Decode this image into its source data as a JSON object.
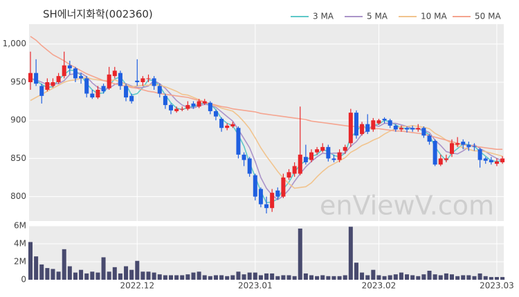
{
  "chart_data": {
    "type": "candlestick",
    "title": "SH에너지화학(002360)",
    "watermark": "enViewV.com",
    "up_color": "#e8262a",
    "down_color": "#1f5fe0",
    "volume_color": "#484a6e",
    "grid": true,
    "categories": [
      null,
      null,
      null,
      null,
      null,
      null,
      null,
      null,
      null,
      null,
      null,
      null,
      null,
      null,
      null,
      null,
      null,
      null,
      null,
      "2022.12",
      null,
      null,
      null,
      null,
      null,
      null,
      null,
      null,
      null,
      null,
      null,
      null,
      null,
      null,
      null,
      null,
      null,
      null,
      null,
      null,
      "2023.01",
      null,
      null,
      null,
      null,
      null,
      null,
      null,
      null,
      null,
      null,
      null,
      null,
      null,
      null,
      null,
      null,
      null,
      null,
      null,
      null,
      null,
      "2023.02",
      null,
      null,
      null,
      null,
      null,
      null,
      null,
      null,
      null,
      null,
      null,
      null,
      null,
      null,
      null,
      null,
      null,
      null,
      null,
      null,
      "2023.03",
      null
    ],
    "open": [
      950,
      962,
      945,
      940,
      945,
      950,
      958,
      972,
      968,
      958,
      955,
      935,
      930,
      945,
      942,
      958,
      962,
      945,
      932,
      952,
      950,
      955,
      955,
      945,
      932,
      920,
      912,
      915,
      915,
      922,
      918,
      922,
      923,
      912,
      902,
      890,
      892,
      890,
      855,
      850,
      828,
      810,
      790,
      785,
      808,
      800,
      825,
      830,
      830,
      852,
      848,
      858,
      860,
      865,
      850,
      848,
      860,
      870,
      910,
      882,
      895,
      888,
      896,
      902,
      900,
      893,
      888,
      890,
      890,
      888,
      890,
      880,
      873,
      842,
      848,
      856,
      868,
      872,
      868,
      866,
      862,
      850,
      848,
      843,
      845
    ],
    "high": [
      990,
      980,
      948,
      955,
      955,
      962,
      990,
      978,
      970,
      962,
      958,
      940,
      945,
      948,
      970,
      970,
      965,
      948,
      935,
      980,
      958,
      960,
      958,
      948,
      935,
      922,
      918,
      918,
      925,
      925,
      928,
      928,
      925,
      914,
      904,
      896,
      898,
      892,
      858,
      852,
      830,
      812,
      800,
      810,
      812,
      830,
      836,
      845,
      918,
      868,
      862,
      865,
      870,
      868,
      855,
      862,
      868,
      915,
      913,
      898,
      908,
      903,
      902,
      904,
      902,
      895,
      893,
      892,
      893,
      895,
      892,
      882,
      875,
      855,
      855,
      875,
      878,
      875,
      872,
      870,
      864,
      852,
      852,
      850,
      853
    ],
    "low": [
      940,
      945,
      922,
      938,
      943,
      948,
      955,
      960,
      950,
      948,
      930,
      928,
      928,
      935,
      940,
      955,
      940,
      925,
      922,
      945,
      945,
      950,
      940,
      930,
      915,
      908,
      910,
      912,
      913,
      915,
      916,
      920,
      908,
      900,
      885,
      887,
      890,
      850,
      840,
      826,
      795,
      786,
      778,
      780,
      796,
      798,
      822,
      826,
      828,
      842,
      845,
      855,
      858,
      846,
      845,
      845,
      856,
      865,
      876,
      880,
      882,
      885,
      894,
      896,
      890,
      885,
      885,
      884,
      885,
      885,
      877,
      868,
      840,
      840,
      845,
      852,
      865,
      862,
      860,
      860,
      838,
      843,
      842,
      840,
      843
    ],
    "close": [
      962,
      948,
      932,
      950,
      950,
      958,
      972,
      968,
      955,
      955,
      935,
      930,
      940,
      938,
      960,
      965,
      945,
      930,
      925,
      950,
      955,
      955,
      945,
      935,
      920,
      913,
      915,
      915,
      920,
      918,
      925,
      925,
      912,
      905,
      890,
      893,
      895,
      855,
      848,
      830,
      800,
      790,
      785,
      805,
      800,
      825,
      832,
      840,
      855,
      845,
      858,
      862,
      865,
      850,
      848,
      858,
      865,
      910,
      880,
      895,
      885,
      900,
      900,
      900,
      893,
      888,
      890,
      888,
      888,
      890,
      880,
      872,
      842,
      850,
      850,
      870,
      870,
      868,
      865,
      865,
      848,
      847,
      845,
      846,
      850
    ],
    "volume": [
      4200000,
      2600000,
      1700000,
      1300000,
      1200000,
      900000,
      3400000,
      1500000,
      800000,
      1100000,
      700000,
      900000,
      800000,
      2500000,
      900000,
      1400000,
      700000,
      1500000,
      1100000,
      2100000,
      900000,
      900000,
      800000,
      600000,
      500000,
      500000,
      500000,
      500000,
      600000,
      800000,
      900000,
      500000,
      400000,
      500000,
      500000,
      400000,
      500000,
      900000,
      600000,
      800000,
      800000,
      500000,
      700000,
      700000,
      400000,
      500000,
      500000,
      400000,
      5700000,
      700000,
      500000,
      400000,
      500000,
      400000,
      400000,
      400000,
      500000,
      5900000,
      1900000,
      800000,
      500000,
      1100000,
      500000,
      400000,
      500000,
      600000,
      800000,
      600000,
      500000,
      400000,
      600000,
      1000000,
      600000,
      500000,
      700000,
      600000,
      400000,
      500000,
      500000,
      400000,
      700000,
      400000,
      300000,
      300000,
      300000
    ],
    "ma_series": [
      {
        "name": "3 MA",
        "color": "#5ec8c8",
        "values": [
          955,
          952,
          947,
          943,
          944,
          953,
          960,
          966,
          965,
          959,
          948,
          940,
          935,
          936,
          946,
          954,
          957,
          947,
          933,
          935,
          943,
          953,
          952,
          945,
          933,
          923,
          916,
          914,
          917,
          918,
          921,
          923,
          921,
          914,
          902,
          896,
          893,
          881,
          866,
          844,
          826,
          807,
          792,
          793,
          797,
          810,
          819,
          832,
          842,
          847,
          853,
          855,
          862,
          859,
          854,
          852,
          857,
          878,
          885,
          895,
          887,
          893,
          895,
          900,
          898,
          894,
          890,
          889,
          889,
          889,
          886,
          881,
          865,
          855,
          847,
          857,
          863,
          869,
          868,
          866,
          859,
          853,
          847,
          846,
          847
        ]
      },
      {
        "name": "5 MA",
        "color": "#ab94c9",
        "values": [
          955,
          953,
          950,
          947,
          948,
          948,
          952,
          960,
          961,
          962,
          957,
          949,
          943,
          940,
          942,
          947,
          950,
          948,
          945,
          943,
          943,
          945,
          952,
          948,
          942,
          934,
          926,
          920,
          917,
          916,
          919,
          921,
          920,
          917,
          911,
          905,
          899,
          888,
          876,
          864,
          846,
          825,
          811,
          802,
          796,
          801,
          809,
          820,
          830,
          839,
          846,
          852,
          857,
          856,
          857,
          857,
          857,
          866,
          872,
          882,
          887,
          894,
          892,
          896,
          896,
          896,
          894,
          892,
          889,
          889,
          887,
          884,
          874,
          867,
          859,
          857,
          856,
          860,
          865,
          868,
          863,
          859,
          854,
          850,
          847
        ]
      },
      {
        "name": "10 MA",
        "color": "#f1c48e",
        "values": [
          926,
          930,
          934,
          938,
          942,
          946,
          950,
          952,
          953,
          955,
          956,
          954,
          953,
          952,
          952,
          953,
          950,
          947,
          944,
          945,
          946,
          946,
          947,
          946,
          944,
          941,
          938,
          934,
          933,
          930,
          927,
          924,
          921,
          919,
          916,
          914,
          912,
          906,
          898,
          889,
          877,
          864,
          853,
          843,
          833,
          824,
          817,
          811,
          812,
          813,
          818,
          826,
          833,
          839,
          843,
          847,
          851,
          858,
          862,
          867,
          870,
          874,
          877,
          882,
          886,
          889,
          892,
          892,
          893,
          892,
          891,
          889,
          883,
          879,
          874,
          870,
          867,
          864,
          862,
          860,
          860,
          859,
          857,
          855,
          853
        ]
      },
      {
        "name": "50 MA",
        "color": "#f5a48f",
        "values": [
          1010,
          1005,
          998,
          992,
          986,
          982,
          978,
          973,
          969,
          965,
          961,
          958,
          955,
          952,
          950,
          948,
          946,
          945,
          943,
          942,
          940,
          938,
          937,
          935,
          934,
          933,
          932,
          931,
          930,
          928,
          926,
          924,
          922,
          920,
          918,
          917,
          915,
          914,
          913,
          912,
          911,
          909,
          908,
          907,
          906,
          905,
          904,
          903,
          902,
          901,
          899,
          898,
          897,
          896,
          895,
          894,
          893,
          892,
          892,
          891,
          890,
          889,
          889,
          888,
          887,
          886,
          886,
          885,
          884,
          883,
          882,
          880,
          878,
          876,
          874,
          872,
          870,
          868,
          867,
          866,
          865,
          864,
          863,
          862,
          862
        ]
      }
    ],
    "ylim": [
      768,
      1026
    ],
    "yticks": [
      800,
      850,
      900,
      950,
      {
        "value": 1000,
        "label": "1,000"
      }
    ],
    "volume_ylim": [
      0,
      6000000
    ],
    "volume_yticks": [
      0,
      {
        "value": 2000000,
        "label": "2M"
      },
      {
        "value": 4000000,
        "label": "4M"
      },
      {
        "value": 6000000,
        "label": "6M"
      }
    ]
  }
}
